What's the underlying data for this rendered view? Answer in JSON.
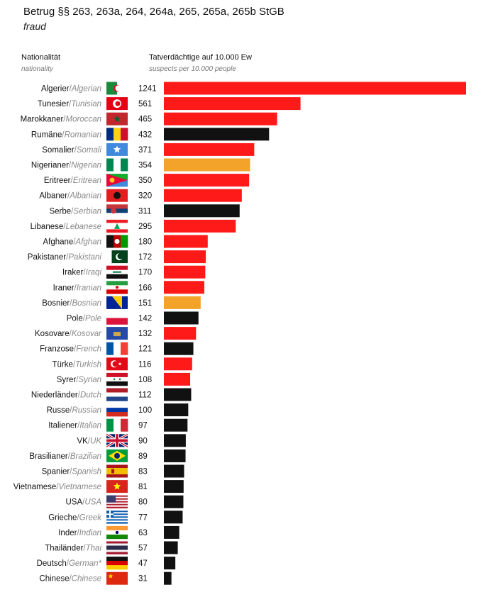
{
  "header": {
    "title": "Betrug §§ 263, 263a, 264, 264a, 265, 265a, 265b StGB",
    "subtitle": "fraud",
    "col_nationality_de": "Nationalität",
    "col_nationality_en": "nationality",
    "col_value_de": "Tatverdächtige auf 10.000 Ew",
    "col_value_en": "suspects per 10.000 people"
  },
  "colors": {
    "red": "#ff1a1a",
    "black": "#111111",
    "orange": "#f3a22a",
    "label_grey": "#888888"
  },
  "chart_data": {
    "type": "bar",
    "orientation": "horizontal",
    "title": "Betrug §§ 263, 263a, 264, 264a, 265, 265a, 265b StGB",
    "subtitle": "fraud",
    "xlabel": "Tatverdächtige auf 10.000 Ew",
    "ylabel": "Nationalität",
    "xlim": [
      0,
      1241
    ],
    "grid": false,
    "legend": "none",
    "categories": [
      {
        "de": "Algerier",
        "en": "Algerian",
        "flag": "flag-algeria",
        "value": 1241,
        "color": "red"
      },
      {
        "de": "Tunesier",
        "en": "Tunisian",
        "flag": "flag-tunisia",
        "value": 561,
        "color": "red"
      },
      {
        "de": "Marokkaner",
        "en": "Moroccan",
        "flag": "flag-morocco",
        "value": 465,
        "color": "red"
      },
      {
        "de": "Rumäne",
        "en": "Romanian",
        "flag": "flag-romania",
        "value": 432,
        "color": "black"
      },
      {
        "de": "Somalier",
        "en": "Somali",
        "flag": "flag-somalia",
        "value": 371,
        "color": "red"
      },
      {
        "de": "Nigerianer",
        "en": "Nigerian",
        "flag": "flag-nigeria",
        "value": 354,
        "color": "orange"
      },
      {
        "de": "Eritreer",
        "en": "Eritrean",
        "flag": "flag-eritrea",
        "value": 350,
        "color": "red"
      },
      {
        "de": "Albaner",
        "en": "Albanian",
        "flag": "flag-albania",
        "value": 320,
        "color": "red"
      },
      {
        "de": "Serbe",
        "en": "Serbian",
        "flag": "flag-serbia",
        "value": 311,
        "color": "black"
      },
      {
        "de": "Libanese",
        "en": "Lebanese",
        "flag": "flag-lebanon",
        "value": 295,
        "color": "red"
      },
      {
        "de": "Afghane",
        "en": "Afghan",
        "flag": "flag-afghanistan",
        "value": 180,
        "color": "red"
      },
      {
        "de": "Pakistaner",
        "en": "Pakistani",
        "flag": "flag-pakistan",
        "value": 172,
        "color": "red"
      },
      {
        "de": "Iraker",
        "en": "Iraqi",
        "flag": "flag-iraq",
        "value": 170,
        "color": "red"
      },
      {
        "de": "Iraner",
        "en": "Iranian",
        "flag": "flag-iran",
        "value": 166,
        "color": "red"
      },
      {
        "de": "Bosnier",
        "en": "Bosnian",
        "flag": "flag-bosnia",
        "value": 151,
        "color": "orange"
      },
      {
        "de": "Pole",
        "en": "Pole",
        "flag": "flag-poland",
        "value": 142,
        "color": "black"
      },
      {
        "de": "Kosovare",
        "en": "Kosovar",
        "flag": "flag-kosovo",
        "value": 132,
        "color": "red"
      },
      {
        "de": "Franzose",
        "en": "French",
        "flag": "flag-france",
        "value": 121,
        "color": "black"
      },
      {
        "de": "Türke",
        "en": "Turkish",
        "flag": "flag-turkey",
        "value": 116,
        "color": "red"
      },
      {
        "de": "Syrer",
        "en": "Syrian",
        "flag": "flag-syria",
        "value": 108,
        "color": "red"
      },
      {
        "de": "Niederländer",
        "en": "Dutch",
        "flag": "flag-netherlands",
        "value": 112,
        "color": "black"
      },
      {
        "de": "Russe",
        "en": "Russian",
        "flag": "flag-russia",
        "value": 100,
        "color": "black"
      },
      {
        "de": "Italiener",
        "en": "Italian",
        "flag": "flag-italy",
        "value": 97,
        "color": "black"
      },
      {
        "de": "VK",
        "en": "UK",
        "flag": "flag-uk",
        "value": 90,
        "color": "black"
      },
      {
        "de": "Brasilianer",
        "en": "Brazilian",
        "flag": "flag-brazil",
        "value": 89,
        "color": "black"
      },
      {
        "de": "Spanier",
        "en": "Spanish",
        "flag": "flag-spain",
        "value": 83,
        "color": "black"
      },
      {
        "de": "Vietnamese",
        "en": "Vietnamese",
        "flag": "flag-vietnam",
        "value": 81,
        "color": "black"
      },
      {
        "de": "USA",
        "en": "USA",
        "flag": "flag-usa",
        "value": 80,
        "color": "black"
      },
      {
        "de": "Grieche",
        "en": "Greek",
        "flag": "flag-greece",
        "value": 77,
        "color": "black"
      },
      {
        "de": "Inder",
        "en": "Indian",
        "flag": "flag-india",
        "value": 63,
        "color": "black"
      },
      {
        "de": "Thailänder",
        "en": "Thai",
        "flag": "flag-thailand",
        "value": 57,
        "color": "black"
      },
      {
        "de": "Deutsch",
        "en": "German*",
        "flag": "flag-germany",
        "value": 47,
        "color": "black"
      },
      {
        "de": "Chinese",
        "en": "Chinese",
        "flag": "flag-china",
        "value": 31,
        "color": "black"
      }
    ]
  }
}
